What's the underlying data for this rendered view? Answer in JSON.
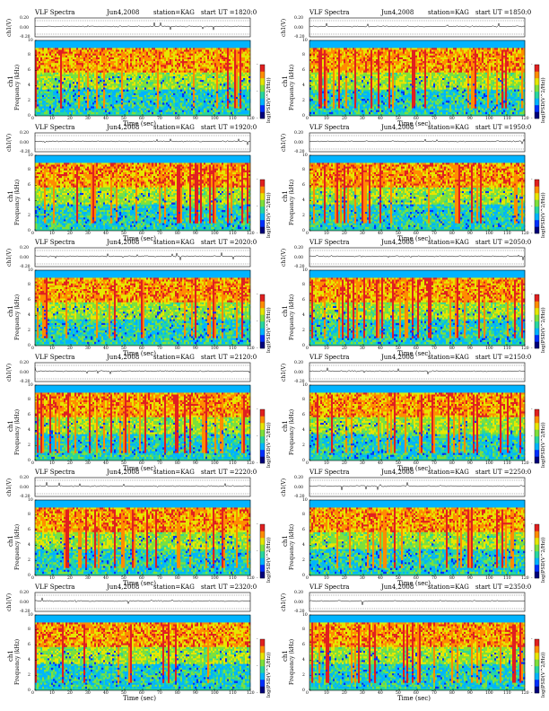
{
  "chart_data": [
    {
      "type": "heatmap",
      "title": "VLF Spectra",
      "date": "Jun4,2008",
      "station": "station=KAG",
      "start": "start UT =1820:0",
      "top_ylabel": "ch1(V)",
      "top_ticks": [
        "0.20",
        "0.00",
        "-0.20"
      ],
      "ylabel_line1": "ch1",
      "ylabel_line2": "Frequency (kHz)",
      "yticks": [
        "0",
        "2",
        "4",
        "6",
        "8",
        "10"
      ],
      "xticks": [
        "0",
        "10",
        "20",
        "30",
        "40",
        "50",
        "60",
        "70",
        "80",
        "90",
        "100",
        "110",
        "120"
      ],
      "xlabel": "Time (sec)",
      "xlim": [
        0,
        120
      ],
      "ylim": [
        0,
        10
      ],
      "colorbar_label": "log(PSD(V^2/Hz))",
      "colorbar_ticks": [
        "-",
        "-",
        "-"
      ],
      "seed": 11
    },
    {
      "type": "heatmap",
      "title": "VLF Spectra",
      "date": "Jun4,2008",
      "station": "station=KAG",
      "start": "start UT =1850:0",
      "top_ylabel": "ch1(V)",
      "top_ticks": [
        "0.20",
        "0.00",
        "-0.20"
      ],
      "ylabel_line1": "ch1",
      "ylabel_line2": "Frequency (kHz)",
      "yticks": [
        "0",
        "2",
        "4",
        "6",
        "8",
        "10"
      ],
      "xticks": [
        "0",
        "10",
        "20",
        "30",
        "40",
        "50",
        "60",
        "70",
        "80",
        "90",
        "100",
        "110",
        "120"
      ],
      "xlabel": "Time (sec)",
      "xlim": [
        0,
        120
      ],
      "ylim": [
        0,
        10
      ],
      "colorbar_label": "log(PSD(V^2/Hz))",
      "colorbar_ticks": [
        "-",
        "-",
        "-"
      ],
      "seed": 23
    },
    {
      "type": "heatmap",
      "title": "VLF Spectra",
      "date": "Jun4,2008",
      "station": "station=KAG",
      "start": "start UT =1920:0",
      "top_ylabel": "ch1(V)",
      "top_ticks": [
        "0.20",
        "0.00",
        "-0.20"
      ],
      "ylabel_line1": "ch1",
      "ylabel_line2": "Frequency (kHz)",
      "yticks": [
        "0",
        "2",
        "4",
        "6",
        "8",
        "10"
      ],
      "xticks": [
        "0",
        "10",
        "20",
        "30",
        "40",
        "50",
        "60",
        "70",
        "80",
        "90",
        "100",
        "110",
        "120"
      ],
      "xlabel": "Time (sec)",
      "xlim": [
        0,
        120
      ],
      "ylim": [
        0,
        10
      ],
      "colorbar_label": "log(PSD(V^2/Hz))",
      "colorbar_ticks": [
        "-",
        "-",
        "-"
      ],
      "seed": 37
    },
    {
      "type": "heatmap",
      "title": "VLF Spectra",
      "date": "Jun4,2008",
      "station": "station=KAG",
      "start": "start UT =1950:0",
      "top_ylabel": "ch1(V)",
      "top_ticks": [
        "0.20",
        "0.00",
        "-0.20"
      ],
      "ylabel_line1": "ch1",
      "ylabel_line2": "Frequency (kHz)",
      "yticks": [
        "0",
        "2",
        "4",
        "6",
        "8",
        "10"
      ],
      "xticks": [
        "0",
        "10",
        "20",
        "30",
        "40",
        "50",
        "60",
        "70",
        "80",
        "90",
        "100",
        "110",
        "120"
      ],
      "xlabel": "Time (sec)",
      "xlim": [
        0,
        120
      ],
      "ylim": [
        0,
        10
      ],
      "colorbar_label": "log(PSD(V^2/Hz))",
      "colorbar_ticks": [
        "-",
        "-",
        "-"
      ],
      "seed": 41
    },
    {
      "type": "heatmap",
      "title": "VLF Spectra",
      "date": "Jun4,2008",
      "station": "station=KAG",
      "start": "start UT =2020:0",
      "top_ylabel": "ch1(V)",
      "top_ticks": [
        "0.20",
        "0.00",
        "-0.20"
      ],
      "ylabel_line1": "ch1",
      "ylabel_line2": "Frequency (kHz)",
      "yticks": [
        "0",
        "2",
        "4",
        "6",
        "8",
        "10"
      ],
      "xticks": [
        "0",
        "10",
        "20",
        "30",
        "40",
        "50",
        "60",
        "70",
        "80",
        "90",
        "100",
        "110",
        "120"
      ],
      "xlabel": "Time (sec)",
      "xlim": [
        0,
        120
      ],
      "ylim": [
        0,
        10
      ],
      "colorbar_label": "log(PSD(V^2/Hz))",
      "colorbar_ticks": [
        "-",
        "-",
        "-"
      ],
      "seed": 53
    },
    {
      "type": "heatmap",
      "title": "VLF Spectra",
      "date": "Jun4,2008",
      "station": "station=KAG",
      "start": "start UT =2050:0",
      "top_ylabel": "ch1(V)",
      "top_ticks": [
        "0.20",
        "0.00",
        "-0.20"
      ],
      "ylabel_line1": "ch1",
      "ylabel_line2": "Frequency (kHz)",
      "yticks": [
        "0",
        "2",
        "4",
        "6",
        "8",
        "10"
      ],
      "xticks": [
        "0",
        "10",
        "20",
        "30",
        "40",
        "50",
        "60",
        "70",
        "80",
        "90",
        "100",
        "110",
        "120"
      ],
      "xlabel": "Time (sec)",
      "xlim": [
        0,
        120
      ],
      "ylim": [
        0,
        10
      ],
      "colorbar_label": "log(PSD(V^2/Hz))",
      "colorbar_ticks": [
        "-",
        "-",
        "-"
      ],
      "seed": 67
    },
    {
      "type": "heatmap",
      "title": "VLF Spectra",
      "date": "Jun4,2008",
      "station": "station=KAG",
      "start": "start UT =2120:0",
      "top_ylabel": "ch1(V)",
      "top_ticks": [
        "0.20",
        "0.00",
        "-0.20"
      ],
      "ylabel_line1": "ch1",
      "ylabel_line2": "Frequency (kHz)",
      "yticks": [
        "0",
        "2",
        "4",
        "6",
        "8",
        "10"
      ],
      "xticks": [
        "0",
        "10",
        "20",
        "30",
        "40",
        "50",
        "60",
        "70",
        "80",
        "90",
        "100",
        "110",
        "120"
      ],
      "xlabel": "Time (sec)",
      "xlim": [
        0,
        120
      ],
      "ylim": [
        0,
        10
      ],
      "colorbar_label": "log(PSD(V^2/Hz))",
      "colorbar_ticks": [
        "-",
        "-",
        "-"
      ],
      "seed": 71
    },
    {
      "type": "heatmap",
      "title": "VLF Spectra",
      "date": "Jun4,2008",
      "station": "station=KAG",
      "start": "start UT =2150:0",
      "top_ylabel": "ch1(V)",
      "top_ticks": [
        "0.20",
        "0.00",
        "-0.20"
      ],
      "ylabel_line1": "ch1",
      "ylabel_line2": "Frequency (kHz)",
      "yticks": [
        "0",
        "2",
        "4",
        "6",
        "8",
        "10"
      ],
      "xticks": [
        "0",
        "10",
        "20",
        "30",
        "40",
        "50",
        "60",
        "70",
        "80",
        "90",
        "100",
        "110",
        "120"
      ],
      "xlabel": "Time (sec)",
      "xlim": [
        0,
        120
      ],
      "ylim": [
        0,
        10
      ],
      "colorbar_label": "log(PSD(V^2/Hz))",
      "colorbar_ticks": [
        "-",
        "-",
        "-"
      ],
      "seed": 83
    },
    {
      "type": "heatmap",
      "title": "VLF Spectra",
      "date": "Jun4,2008",
      "station": "station=KAG",
      "start": "start UT =2220:0",
      "top_ylabel": "ch1(V)",
      "top_ticks": [
        "0.20",
        "0.00",
        "-0.20"
      ],
      "ylabel_line1": "ch1",
      "ylabel_line2": "Frequency (kHz)",
      "yticks": [
        "0",
        "2",
        "4",
        "6",
        "8",
        "10"
      ],
      "xticks": [
        "0",
        "10",
        "20",
        "30",
        "40",
        "50",
        "60",
        "70",
        "80",
        "90",
        "100",
        "110",
        "120"
      ],
      "xlabel": "Time (sec)",
      "xlim": [
        0,
        120
      ],
      "ylim": [
        0,
        10
      ],
      "colorbar_label": "log(PSD(V^2/Hz))",
      "colorbar_ticks": [
        "-",
        "-",
        "-"
      ],
      "seed": 97
    },
    {
      "type": "heatmap",
      "title": "VLF Spectra",
      "date": "Jun4,2008",
      "station": "station=KAG",
      "start": "start UT =2250:0",
      "top_ylabel": "ch1(V)",
      "top_ticks": [
        "0.20",
        "0.00",
        "-0.20"
      ],
      "ylabel_line1": "ch1",
      "ylabel_line2": "Frequency (kHz)",
      "yticks": [
        "0",
        "2",
        "4",
        "6",
        "8",
        "10"
      ],
      "xticks": [
        "0",
        "10",
        "20",
        "30",
        "40",
        "50",
        "60",
        "70",
        "80",
        "90",
        "100",
        "110",
        "120"
      ],
      "xlabel": "Time (sec)",
      "xlim": [
        0,
        120
      ],
      "ylim": [
        0,
        10
      ],
      "colorbar_label": "log(PSD(V^2/Hz))",
      "colorbar_ticks": [
        "-",
        "-",
        "-"
      ],
      "seed": 101
    },
    {
      "type": "heatmap",
      "title": "VLF Spectra",
      "date": "Jun4,2008",
      "station": "station=KAG",
      "start": "start UT =2320:0",
      "top_ylabel": "ch1(V)",
      "top_ticks": [
        "0.20",
        "0.00",
        "-0.20"
      ],
      "ylabel_line1": "ch1",
      "ylabel_line2": "Frequency (kHz)",
      "yticks": [
        "0",
        "2",
        "4",
        "6",
        "8",
        "10"
      ],
      "xticks": [
        "0",
        "10",
        "20",
        "30",
        "40",
        "50",
        "60",
        "70",
        "80",
        "90",
        "100",
        "110",
        "120"
      ],
      "xlabel": "Time (sec)",
      "xlim": [
        0,
        120
      ],
      "ylim": [
        0,
        10
      ],
      "colorbar_label": "log(PSD(V^2/Hz))",
      "colorbar_ticks": [
        "-",
        "-",
        "-"
      ],
      "seed": 113
    },
    {
      "type": "heatmap",
      "title": "VLF Spectra",
      "date": "Jun4,2008",
      "station": "station=KAG",
      "start": "start UT =2350:0",
      "top_ylabel": "ch1(V)",
      "top_ticks": [
        "0.20",
        "0.00",
        "-0.20"
      ],
      "ylabel_line1": "ch1",
      "ylabel_line2": "Frequency (kHz)",
      "yticks": [
        "0",
        "2",
        "4",
        "6",
        "8",
        "10"
      ],
      "xticks": [
        "0",
        "10",
        "20",
        "30",
        "40",
        "50",
        "60",
        "70",
        "80",
        "90",
        "100",
        "110",
        "120"
      ],
      "xlabel": "Time (sec)",
      "xlim": [
        0,
        120
      ],
      "ylim": [
        0,
        10
      ],
      "colorbar_label": "log(PSD(V^2/Hz))",
      "colorbar_ticks": [
        "-",
        "-",
        "-"
      ],
      "seed": 127
    }
  ],
  "colormap": [
    "#00007a",
    "#0030ff",
    "#00b4ff",
    "#27d6a0",
    "#7ee03a",
    "#e6e600",
    "#ff8c00",
    "#e02020"
  ]
}
